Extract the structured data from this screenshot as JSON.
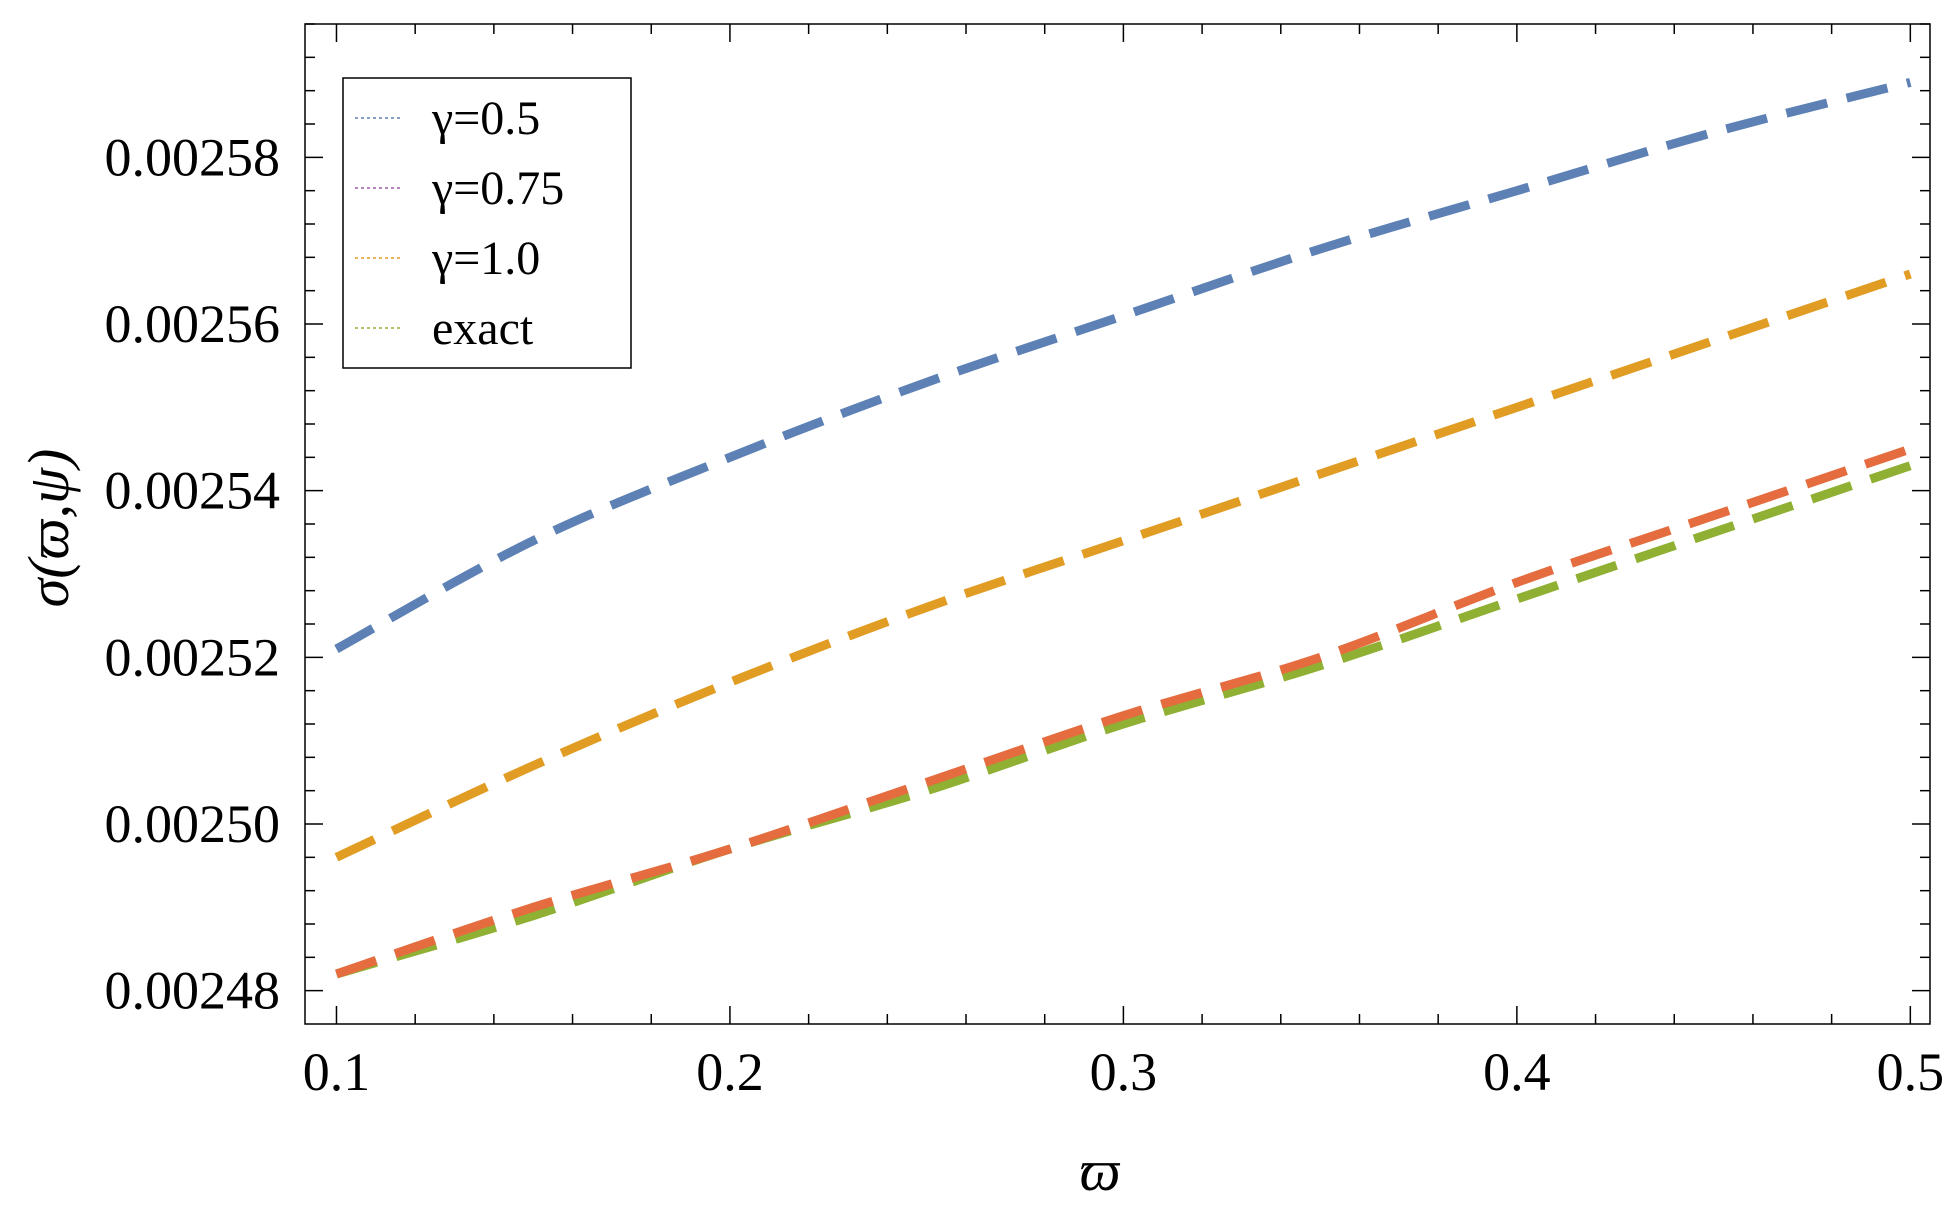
{
  "chart_data": {
    "type": "line",
    "title": "",
    "xlabel": "ϖ",
    "ylabel": "σ(ϖ,ψ)",
    "xlim": [
      0.092,
      0.505
    ],
    "ylim": [
      0.002476,
      0.002596
    ],
    "x_ticks": [
      0.1,
      0.2,
      0.3,
      0.4,
      0.5
    ],
    "x_tick_labels": [
      "0.1",
      "0.2",
      "0.3",
      "0.4",
      "0.5"
    ],
    "y_ticks": [
      0.00248,
      0.0025,
      0.00252,
      0.00254,
      0.00256,
      0.00258
    ],
    "y_tick_labels": [
      "0.00248",
      "0.00250",
      "0.00252",
      "0.00254",
      "0.00256",
      "0.00258"
    ],
    "grid": false,
    "legend_position": "top-left",
    "x": [
      0.1,
      0.15,
      0.2,
      0.25,
      0.3,
      0.35,
      0.4,
      0.45,
      0.5
    ],
    "series": [
      {
        "name": "γ=0.5",
        "color": "#5e81b5",
        "legend_color": "#5e81b5",
        "dash": "dashed",
        "values": [
          0.002521,
          0.002534,
          0.002544,
          0.002553,
          0.002561,
          0.002569,
          0.002576,
          0.002583,
          0.002589
        ]
      },
      {
        "name": "γ=0.75",
        "color": "#e56c3f",
        "legend_color": "#9b5aa6",
        "dash": "dashed",
        "values": [
          0.002482,
          0.00249,
          0.002497,
          0.002505,
          0.002513,
          0.00252,
          0.002529,
          0.002537,
          0.002545
        ]
      },
      {
        "name": "γ=1.0",
        "color": "#e19c24",
        "legend_color": "#e19c24",
        "dash": "dashed",
        "values": [
          0.002496,
          0.002507,
          0.002517,
          0.002526,
          0.002534,
          0.002542,
          0.00255,
          0.002558,
          0.002566
        ]
      },
      {
        "name": "exact",
        "color": "#8fb032",
        "legend_color": "#8fb032",
        "dash": "dashed",
        "values": [
          0.002482,
          0.002489,
          0.002497,
          0.002504,
          0.002512,
          0.002519,
          0.002527,
          0.002535,
          0.002543
        ]
      }
    ]
  }
}
